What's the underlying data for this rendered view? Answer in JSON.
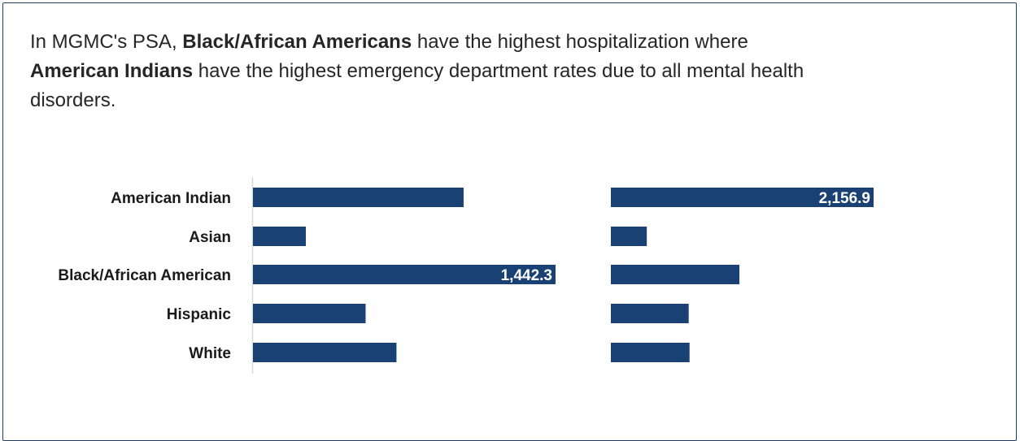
{
  "headline": {
    "part1": "In MGMC's PSA, ",
    "bold1": "Black/African Americans",
    "part2": " have the highest hospitalization where ",
    "bold2": "American Indians",
    "part3": " have the highest emergency department rates due to all mental health disorders."
  },
  "colors": {
    "bar": "#1a4173",
    "axis": "#d9d9d9",
    "frame": "#1f3f66"
  },
  "chart_data": [
    {
      "type": "bar",
      "orientation": "horizontal",
      "categories": [
        "American Indian",
        "Asian",
        "Black/African American",
        "Hispanic",
        "White"
      ],
      "series": [
        {
          "values": [
            1004,
            252,
            1442.3,
            537,
            684
          ]
        }
      ],
      "data_labels": [
        "",
        "",
        "1,442.3",
        "",
        ""
      ],
      "xlim": [
        0,
        1442.3
      ]
    },
    {
      "type": "bar",
      "orientation": "horizontal",
      "categories": [
        "American Indian",
        "Asian",
        "Black/African American",
        "Hispanic",
        "White"
      ],
      "series": [
        {
          "values": [
            2156.9,
            295,
            1055,
            639,
            646
          ]
        }
      ],
      "data_labels": [
        "2,156.9",
        "",
        "",
        "",
        ""
      ],
      "xlim": [
        0,
        2156.9
      ]
    }
  ]
}
